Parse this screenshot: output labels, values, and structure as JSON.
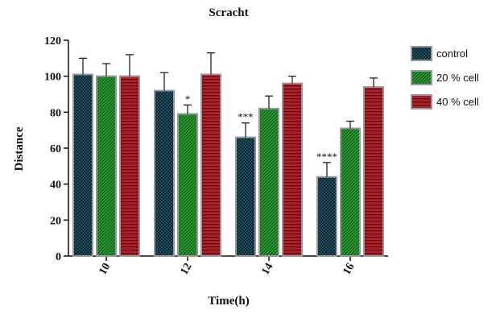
{
  "chart_data": {
    "type": "bar",
    "title": "Scracht",
    "xlabel": "Time(h)",
    "ylabel": "Distance",
    "ylim": [
      0,
      120
    ],
    "yticks": [
      0,
      20,
      40,
      60,
      80,
      100,
      120
    ],
    "categories": [
      "10",
      "12",
      "14",
      "16"
    ],
    "series": [
      {
        "name": "control",
        "color": "#1f4e5e",
        "pattern": "checker",
        "values": [
          101,
          92,
          66,
          44
        ],
        "errors": [
          9,
          10,
          8,
          8
        ]
      },
      {
        "name": "20 % cell",
        "color": "#2e9e34",
        "pattern": "diagonal",
        "values": [
          100,
          79,
          82,
          71
        ],
        "errors": [
          7,
          5,
          7,
          4
        ]
      },
      {
        "name": "40 % cell",
        "color": "#b3202a",
        "pattern": "horizontal",
        "values": [
          100,
          101,
          96,
          94
        ],
        "errors": [
          12,
          12,
          4,
          5
        ]
      }
    ],
    "annotations": [
      {
        "category": "12",
        "series": "20 % cell",
        "text": "*"
      },
      {
        "category": "14",
        "series": "control",
        "text": "***"
      },
      {
        "category": "16",
        "series": "control",
        "text": "****"
      }
    ],
    "legend": "right",
    "grid": false
  }
}
